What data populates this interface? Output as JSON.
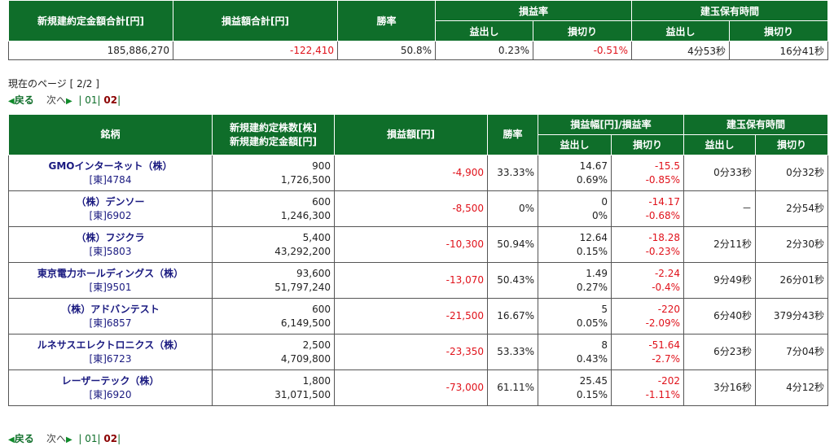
{
  "summary": {
    "headers": {
      "total_amount": "新規建約定金額合計[円]",
      "total_pl": "損益額合計[円]",
      "win_rate": "勝率",
      "pl_rate": "損益率",
      "hold_time": "建玉保有時間",
      "profit": "益出し",
      "loss": "損切り"
    },
    "values": {
      "total_amount": "185,886,270",
      "total_pl": "-122,410",
      "win_rate": "50.8%",
      "pl_rate_profit": "0.23%",
      "pl_rate_loss": "-0.51%",
      "hold_profit": "4分53秒",
      "hold_loss": "16分41秒"
    }
  },
  "page_status": "現在のページ [ 2/2 ]",
  "pager": {
    "back": "戻る",
    "next": "次へ",
    "p1": "01",
    "p2": "02"
  },
  "detail": {
    "headers": {
      "stock": "銘柄",
      "qty_amount_1": "新規建約定株数[株]",
      "qty_amount_2": "新規建約定金額[円]",
      "pl": "損益額[円]",
      "win_rate": "勝率",
      "pl_width": "損益幅[円]/損益率",
      "hold_time": "建玉保有時間",
      "profit": "益出し",
      "loss": "損切り"
    },
    "rows": [
      {
        "name": "GMOインターネット（株）",
        "code": "[東]4784",
        "qty": "900",
        "amount": "1,726,500",
        "pl": "-4,900",
        "win": "33.33%",
        "pw_yen": "14.67",
        "pw_pct": "0.69%",
        "lw_yen": "-15.5",
        "lw_pct": "-0.85%",
        "hold_p": "0分33秒",
        "hold_l": "0分32秒"
      },
      {
        "name": "（株）デンソー",
        "code": "[東]6902",
        "qty": "600",
        "amount": "1,246,300",
        "pl": "-8,500",
        "win": "0%",
        "pw_yen": "0",
        "pw_pct": "0%",
        "lw_yen": "-14.17",
        "lw_pct": "-0.68%",
        "hold_p": "－",
        "hold_l": "2分54秒"
      },
      {
        "name": "（株）フジクラ",
        "code": "[東]5803",
        "qty": "5,400",
        "amount": "43,292,200",
        "pl": "-10,300",
        "win": "50.94%",
        "pw_yen": "12.64",
        "pw_pct": "0.15%",
        "lw_yen": "-18.28",
        "lw_pct": "-0.23%",
        "hold_p": "2分11秒",
        "hold_l": "2分30秒"
      },
      {
        "name": "東京電力ホールディングス（株）",
        "code": "[東]9501",
        "qty": "93,600",
        "amount": "51,797,240",
        "pl": "-13,070",
        "win": "50.43%",
        "pw_yen": "1.49",
        "pw_pct": "0.27%",
        "lw_yen": "-2.24",
        "lw_pct": "-0.4%",
        "hold_p": "9分49秒",
        "hold_l": "26分01秒"
      },
      {
        "name": "（株）アドバンテスト",
        "code": "[東]6857",
        "qty": "600",
        "amount": "6,149,500",
        "pl": "-21,500",
        "win": "16.67%",
        "pw_yen": "5",
        "pw_pct": "0.05%",
        "lw_yen": "-220",
        "lw_pct": "-2.09%",
        "hold_p": "6分40秒",
        "hold_l": "379分43秒"
      },
      {
        "name": "ルネサスエレクトロニクス（株）",
        "code": "[東]6723",
        "qty": "2,500",
        "amount": "4,709,800",
        "pl": "-23,350",
        "win": "53.33%",
        "pw_yen": "8",
        "pw_pct": "0.43%",
        "lw_yen": "-51.64",
        "lw_pct": "-2.7%",
        "hold_p": "6分23秒",
        "hold_l": "7分04秒"
      },
      {
        "name": "レーザーテック（株）",
        "code": "[東]6920",
        "qty": "1,800",
        "amount": "31,071,500",
        "pl": "-73,000",
        "win": "61.11%",
        "pw_yen": "25.45",
        "pw_pct": "0.15%",
        "lw_yen": "-202",
        "lw_pct": "-1.11%",
        "hold_p": "3分16秒",
        "hold_l": "4分12秒"
      }
    ]
  },
  "colors": {
    "header_bg": "#0f6e2a",
    "negative": "#e0121b",
    "link": "#1a1a80"
  }
}
